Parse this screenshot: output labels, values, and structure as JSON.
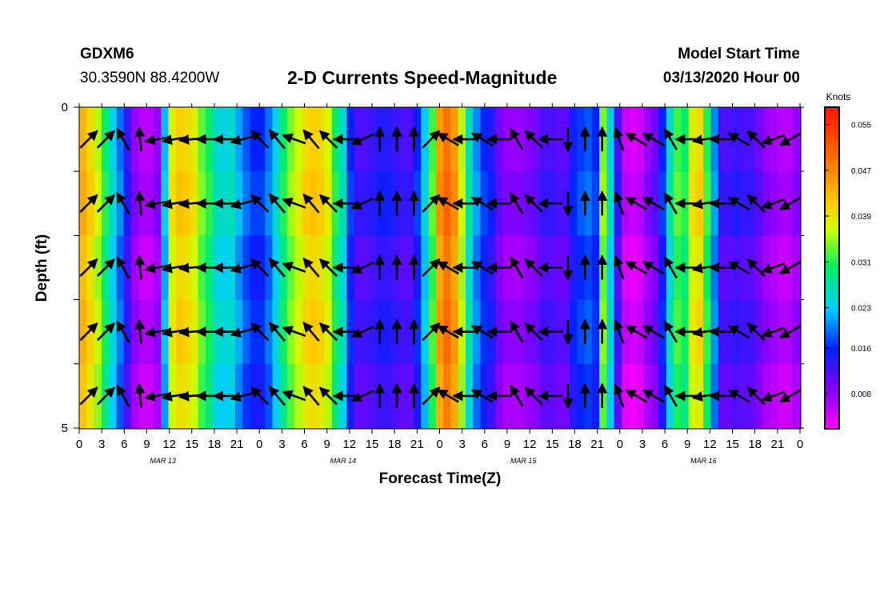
{
  "header": {
    "station": "GDXM6",
    "coords": "30.3590N 88.4200W",
    "title": "2-D Currents Speed-Magnitude",
    "model_start_label": "Model Start Time",
    "model_start_value": "03/13/2020 Hour 00"
  },
  "chart_data": {
    "type": "heatmap",
    "title": "2-D Currents Speed-Magnitude",
    "xlabel": "Forecast Time(Z)",
    "ylabel": "Depth (ft)",
    "x_ticks": [
      "0",
      "3",
      "6",
      "9",
      "12",
      "15",
      "18",
      "21",
      "0",
      "3",
      "6",
      "9",
      "12",
      "15",
      "18",
      "21",
      "0",
      "3",
      "6",
      "9",
      "12",
      "15",
      "18",
      "21",
      "0",
      "3",
      "6",
      "9",
      "12",
      "15",
      "18",
      "21",
      "0"
    ],
    "day_labels": [
      "MAR 13",
      "MAR 14",
      "MAR 15",
      "MAR 16"
    ],
    "y_ticks": [
      "0",
      "5"
    ],
    "ylim": [
      0,
      5
    ],
    "xlim_hours": [
      0,
      96
    ],
    "colorbar": {
      "unit": "Knots",
      "ticks": [
        "0.055",
        "0.047",
        "0.039",
        "0.031",
        "0.023",
        "0.016",
        "0.008"
      ],
      "range": [
        0.002,
        0.058
      ]
    },
    "speed_profile_knots": [
      0.043,
      0.04,
      0.036,
      0.03,
      0.024,
      0.019,
      0.013,
      0.008,
      0.006,
      0.006,
      0.008,
      0.022,
      0.038,
      0.041,
      0.04,
      0.038,
      0.033,
      0.03,
      0.025,
      0.024,
      0.025,
      0.021,
      0.018,
      0.016,
      0.016,
      0.019,
      0.024,
      0.03,
      0.034,
      0.037,
      0.04,
      0.041,
      0.04,
      0.037,
      0.03,
      0.025,
      0.016,
      0.012,
      0.012,
      0.013,
      0.014,
      0.014,
      0.013,
      0.012,
      0.012,
      0.016,
      0.023,
      0.032,
      0.045,
      0.049,
      0.045,
      0.036,
      0.026,
      0.02,
      0.016,
      0.014,
      0.01,
      0.008,
      0.008,
      0.008,
      0.009,
      0.01,
      0.012,
      0.012,
      0.011,
      0.011,
      0.015,
      0.017,
      0.018,
      0.016,
      0.034,
      0.024,
      0.012,
      0.005,
      0.004,
      0.005,
      0.008,
      0.01,
      0.016,
      0.026,
      0.032,
      0.03,
      0.038,
      0.04,
      0.031,
      0.02,
      0.012,
      0.012,
      0.013,
      0.012,
      0.012,
      0.01,
      0.008,
      0.007,
      0.006,
      0.006,
      0.008
    ],
    "depth_bands_ft": [
      0.5,
      1.5,
      2.5,
      3.5,
      4.5
    ],
    "vectors": [
      {
        "row": 0,
        "dirs": [
          45,
          45,
          -30,
          -5,
          -100,
          -100,
          -95,
          -90,
          -90,
          -105,
          -45,
          -40,
          -70,
          -40,
          -45,
          -90,
          -115,
          0,
          0,
          0,
          45,
          -60,
          -90,
          -60,
          -90,
          -30,
          -45,
          -90,
          180,
          0,
          0,
          -20,
          -60,
          -60,
          -30,
          -90,
          -100,
          -90,
          -60,
          -45,
          -110,
          -120
        ]
      },
      {
        "row": 1,
        "dirs": [
          45,
          45,
          -30,
          -5,
          -100,
          -100,
          -95,
          -90,
          -90,
          -105,
          -45,
          -40,
          -70,
          -40,
          -45,
          -90,
          -115,
          0,
          0,
          0,
          45,
          -60,
          -90,
          -60,
          -90,
          -30,
          -45,
          -90,
          180,
          0,
          0,
          -20,
          -60,
          -60,
          -30,
          -90,
          -100,
          -90,
          -60,
          -45,
          -110,
          -120
        ]
      },
      {
        "row": 2,
        "dirs": [
          45,
          45,
          -30,
          -5,
          -100,
          -100,
          -95,
          -90,
          -90,
          -105,
          -45,
          -40,
          -70,
          -40,
          -45,
          -90,
          -115,
          0,
          0,
          0,
          45,
          -60,
          -90,
          -60,
          -90,
          -30,
          -45,
          -90,
          180,
          0,
          0,
          -20,
          -60,
          -60,
          -30,
          -90,
          -100,
          -90,
          -60,
          -45,
          -110,
          -120
        ]
      },
      {
        "row": 3,
        "dirs": [
          45,
          45,
          -30,
          -5,
          -100,
          -100,
          -95,
          -90,
          -90,
          -105,
          -45,
          -40,
          -70,
          -40,
          -45,
          -90,
          -115,
          0,
          0,
          0,
          45,
          -60,
          -90,
          -60,
          -90,
          -30,
          -45,
          -90,
          180,
          0,
          0,
          -20,
          -60,
          -60,
          -30,
          -90,
          -100,
          -90,
          -60,
          -45,
          -110,
          -120
        ]
      },
      {
        "row": 4,
        "dirs": [
          45,
          45,
          -30,
          -5,
          -100,
          -100,
          -95,
          -90,
          -90,
          -105,
          -45,
          -40,
          -70,
          -40,
          -45,
          -90,
          -115,
          0,
          0,
          0,
          45,
          -60,
          -90,
          -60,
          -90,
          -30,
          -45,
          -90,
          180,
          0,
          0,
          -20,
          -60,
          -60,
          -30,
          -90,
          -100,
          -90,
          -60,
          -45,
          -110,
          -120
        ]
      }
    ]
  }
}
